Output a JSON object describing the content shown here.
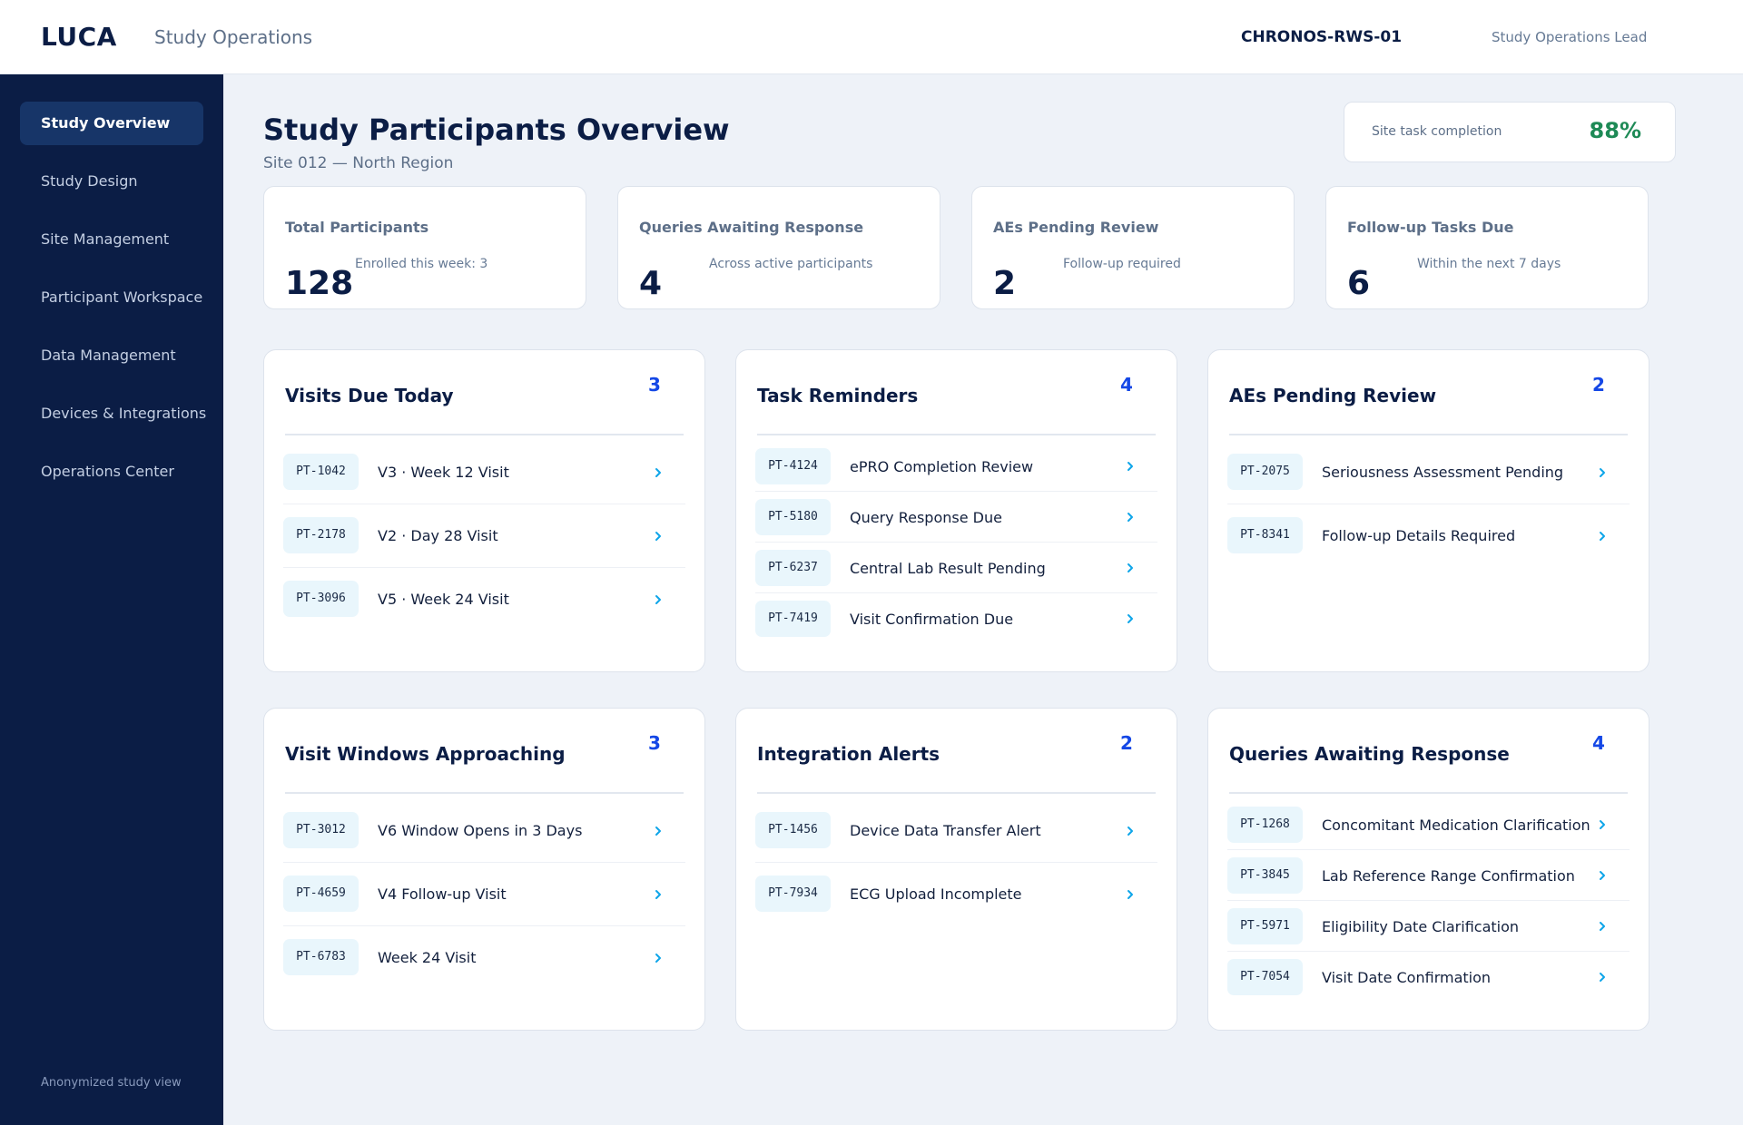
{
  "header": {
    "logo": "LUCA",
    "app_name": "Study Operations",
    "study_id": "CHRONOS-RWS-01",
    "user_role": "Study Operations Lead"
  },
  "sidebar": {
    "items": [
      {
        "label": "Study Overview",
        "active": true
      },
      {
        "label": "Study Design",
        "active": false
      },
      {
        "label": "Site Management",
        "active": false
      },
      {
        "label": "Participant Workspace",
        "active": false
      },
      {
        "label": "Data Management",
        "active": false
      },
      {
        "label": "Devices & Integrations",
        "active": false
      },
      {
        "label": "Operations Center",
        "active": false
      }
    ],
    "footer": "Anonymized study view"
  },
  "page": {
    "title": "Study Participants Overview",
    "subtitle": "Site 012 — North Region",
    "completion_label": "Site task completion",
    "completion_value": "88%"
  },
  "stats": [
    {
      "label": "Total Participants",
      "value": "128",
      "note": "Enrolled this week: 3"
    },
    {
      "label": "Queries Awaiting Response",
      "value": "4",
      "note": "Across active participants"
    },
    {
      "label": "AEs Pending Review",
      "value": "2",
      "note": "Follow-up required"
    },
    {
      "label": "Follow-up Tasks Due",
      "value": "6",
      "note": "Within the next 7 days"
    }
  ],
  "panels": [
    {
      "title": "Visits Due Today",
      "count": "3",
      "rows": [
        {
          "id": "PT-1042",
          "text": "V3 · Week 12 Visit"
        },
        {
          "id": "PT-2178",
          "text": "V2 · Day 28 Visit"
        },
        {
          "id": "PT-3096",
          "text": "V5 · Week 24 Visit"
        }
      ]
    },
    {
      "title": "Task Reminders",
      "count": "4",
      "rows": [
        {
          "id": "PT-4124",
          "text": "ePRO Completion Review"
        },
        {
          "id": "PT-5180",
          "text": "Query Response Due"
        },
        {
          "id": "PT-6237",
          "text": "Central Lab Result Pending"
        },
        {
          "id": "PT-7419",
          "text": "Visit Confirmation Due"
        }
      ]
    },
    {
      "title": "AEs Pending Review",
      "count": "2",
      "rows": [
        {
          "id": "PT-2075",
          "text": "Seriousness Assessment Pending"
        },
        {
          "id": "PT-8341",
          "text": "Follow-up Details Required"
        }
      ]
    },
    {
      "title": "Visit Windows Approaching",
      "count": "3",
      "rows": [
        {
          "id": "PT-3012",
          "text": "V6 Window Opens in 3 Days"
        },
        {
          "id": "PT-4659",
          "text": "V4 Follow-up Visit"
        },
        {
          "id": "PT-6783",
          "text": "Week 24 Visit"
        }
      ]
    },
    {
      "title": "Integration Alerts",
      "count": "2",
      "rows": [
        {
          "id": "PT-1456",
          "text": "Device Data Transfer Alert"
        },
        {
          "id": "PT-7934",
          "text": "ECG Upload Incomplete"
        }
      ]
    },
    {
      "title": "Queries Awaiting Response",
      "count": "4",
      "rows": [
        {
          "id": "PT-1268",
          "text": "Concomitant Medication Clarification"
        },
        {
          "id": "PT-3845",
          "text": "Lab Reference Range Confirmation"
        },
        {
          "id": "PT-5971",
          "text": "Eligibility Date Clarification"
        },
        {
          "id": "PT-7054",
          "text": "Visit Date Confirmation"
        }
      ]
    }
  ],
  "colors": {
    "sidebar": "#0b1d45",
    "active_nav": "#173568",
    "accent": "#1447e6",
    "success": "#1e8a56",
    "chevron": "#0ea5e9",
    "badge_bg": "#e9f6fc"
  },
  "icons": {
    "row_action": "chevron-right-icon"
  }
}
